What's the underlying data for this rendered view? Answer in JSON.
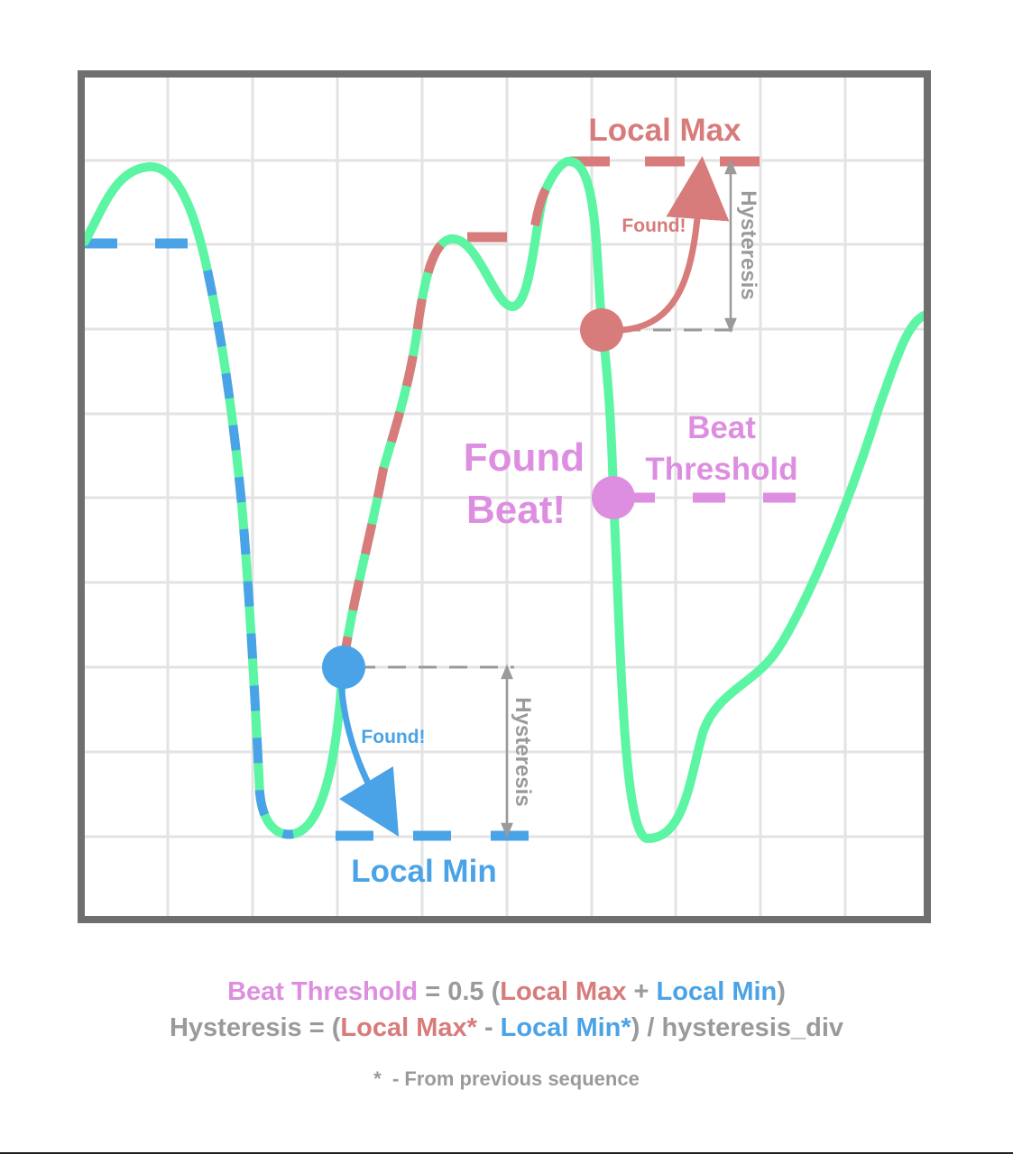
{
  "colors": {
    "signal": "#5cf5a4",
    "local_max": "#d77b7b",
    "local_min": "#4aa3e6",
    "beat": "#dd8ee0",
    "hysteresis": "#9a9a9a",
    "frame": "#6f6f6f",
    "grid": "#e3e3e3"
  },
  "labels": {
    "local_max": "Local Max",
    "local_min": "Local Min",
    "found_max": "Found!",
    "found_min": "Found!",
    "hysteresis_top": "Hysteresis",
    "hysteresis_bottom": "Hysteresis",
    "found_beat_line1": "Found",
    "found_beat_line2": "Beat!",
    "beat_threshold_line1": "Beat",
    "beat_threshold_line2": "Threshold"
  },
  "formula1": {
    "beat_threshold": "Beat Threshold",
    "equals": " = 0.5 (",
    "local_max": "Local Max",
    "plus": " + ",
    "local_min": "Local Min",
    "close": ")"
  },
  "formula2": {
    "hysteresis": "Hysteresis = (",
    "local_max": "Local Max*",
    "minus": " - ",
    "local_min": "Local Min*",
    "tail": ") / hysteresis_div"
  },
  "footnote": "*  - From previous sequence"
}
